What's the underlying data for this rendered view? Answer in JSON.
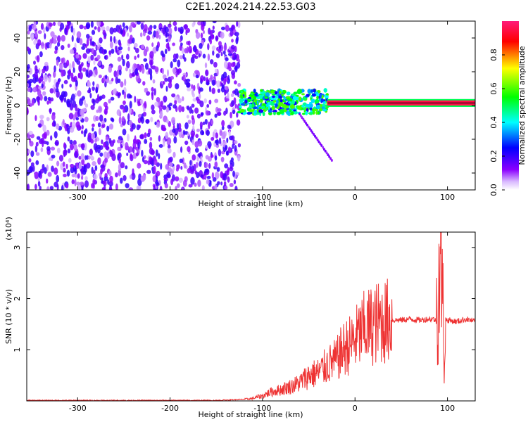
{
  "title": "C2E1.2024.214.22.53.G03",
  "chart_data": [
    {
      "type": "heatmap",
      "xlabel": "Height of straight line (km)",
      "ylabel": "Frequency (Hz)",
      "xlim": [
        -355,
        130
      ],
      "ylim": [
        -50,
        50
      ],
      "xticks": [
        -300,
        -200,
        -100,
        0,
        100
      ],
      "yticks": [
        -40,
        -20,
        0,
        20,
        40
      ],
      "colorbar": {
        "label": "Normalized spectral amplitude",
        "range": [
          0.0,
          1.0
        ],
        "ticks": [
          0.0,
          0.2,
          0.4,
          0.6,
          0.8
        ],
        "colors": [
          "#ffffff",
          "#8b00ff",
          "#0000ff",
          "#00ffff",
          "#00ff00",
          "#ffff00",
          "#ff0000",
          "#ff1a7a"
        ]
      },
      "regions": [
        {
          "x": [
            -355,
            -125
          ],
          "y": [
            -50,
            50
          ],
          "pattern": "noise",
          "amplitude": 0.15
        },
        {
          "x": [
            -125,
            -30
          ],
          "y": [
            -5,
            9
          ],
          "pattern": "band",
          "amplitude": 0.55
        },
        {
          "x": [
            -30,
            130
          ],
          "y": [
            0,
            3
          ],
          "pattern": "carrier",
          "amplitude": 0.95
        }
      ]
    },
    {
      "type": "line",
      "xlabel": "Height of straight line (km)",
      "ylabel": "SNR (10 * v/v)",
      "scale_label": "(x10⁴)",
      "xlim": [
        -355,
        130
      ],
      "ylim": [
        0,
        3.3
      ],
      "xticks": [
        -300,
        -200,
        -100,
        0,
        100
      ],
      "yticks": [
        1,
        2,
        3
      ],
      "color": "#ee3333",
      "series": [
        {
          "x": [
            -355,
            -300,
            -250,
            -200,
            -150,
            -120,
            -110,
            -100,
            -90,
            -80,
            -70,
            -60,
            -50,
            -40,
            -30,
            -20,
            -15,
            -10,
            -5,
            0,
            5,
            10,
            20,
            30,
            40,
            50,
            60,
            70,
            80,
            85,
            88,
            91,
            93,
            95,
            97,
            100,
            110,
            120,
            130
          ],
          "values": [
            0.01,
            0.01,
            0.01,
            0.01,
            0.01,
            0.03,
            0.05,
            0.1,
            0.18,
            0.22,
            0.28,
            0.35,
            0.5,
            0.55,
            0.7,
            0.8,
            0.95,
            1.05,
            1.1,
            1.2,
            1.3,
            1.4,
            1.5,
            1.55,
            1.58,
            1.58,
            1.6,
            1.58,
            1.6,
            1.6,
            1.55,
            2.5,
            3.1,
            1.5,
            1.6,
            1.58,
            1.55,
            1.6,
            1.55
          ]
        }
      ]
    }
  ]
}
